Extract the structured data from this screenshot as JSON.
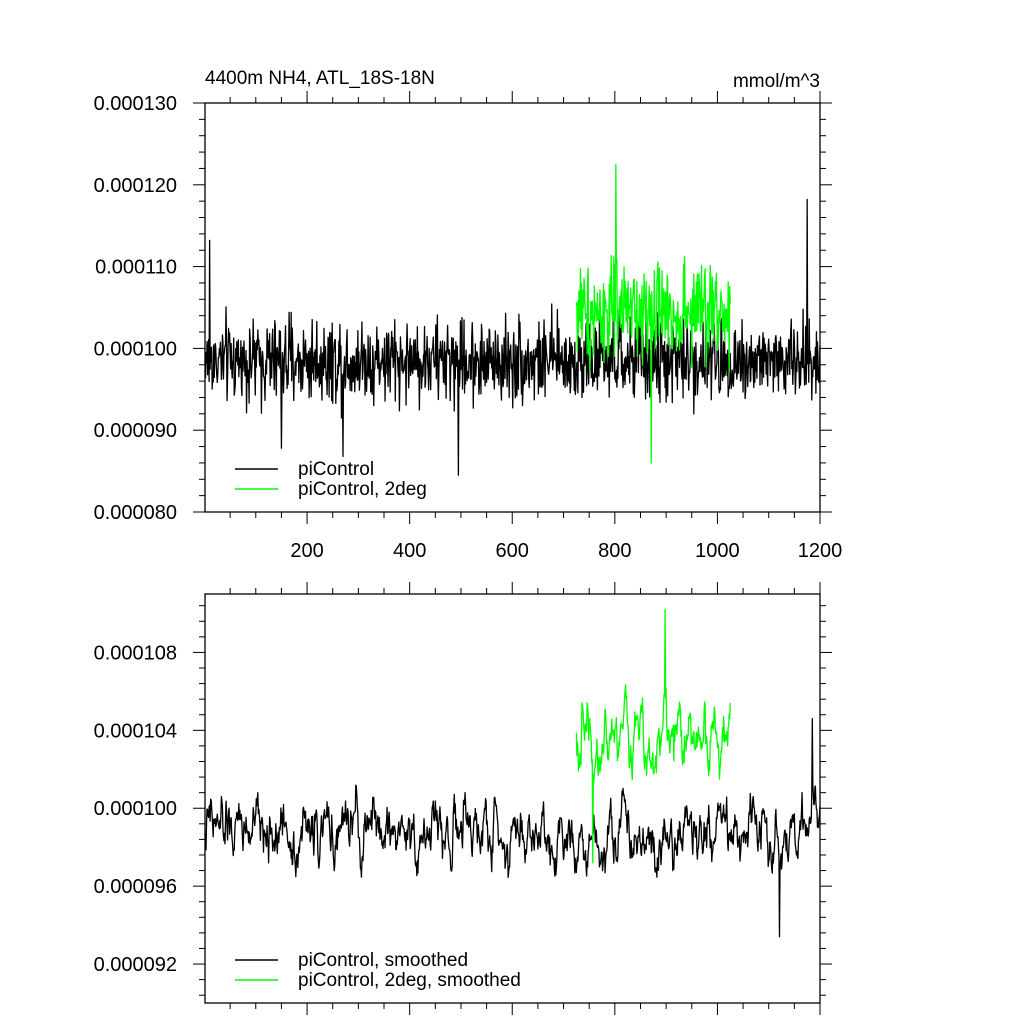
{
  "colors": {
    "piControl": "#000000",
    "piControl_2deg": "#00ff00",
    "axes": "#000000",
    "background": "#ffffff"
  },
  "chart_data": [
    {
      "type": "line",
      "title": "4400m NH4, ATL_18S-18N",
      "units": "mmol/m^3",
      "xlim": [
        1,
        1200
      ],
      "ylim": [
        8e-05,
        0.00013
      ],
      "x_ticks": [
        200,
        400,
        600,
        800,
        1000,
        1200
      ],
      "x_tick_labels": [
        "200",
        "400",
        "600",
        "800",
        "1000",
        "1200"
      ],
      "y_ticks": [
        8e-05,
        9e-05,
        0.0001,
        0.00011,
        0.00012,
        0.00013
      ],
      "y_tick_labels": [
        "0.000080",
        "0.000090",
        "0.000100",
        "0.000110",
        "0.000120",
        "0.000130"
      ],
      "legend": {
        "position": "bottom-left",
        "entries": [
          {
            "label": "piControl",
            "color": "#000000"
          },
          {
            "label": "piControl, 2deg",
            "color": "#00ff00"
          }
        ]
      },
      "series": [
        {
          "name": "piControl",
          "color": "#000000",
          "x_range": [
            1,
            1200
          ],
          "mean": 9.85e-05,
          "noise_amplitude": 4.5e-06,
          "min": 8.45e-05,
          "max": 0.000118,
          "description_points": [
            [
              10,
              0.0001132
            ],
            [
              150,
              8.78e-05
            ],
            [
              270,
              8.68e-05
            ],
            [
              495,
              8.45e-05
            ],
            [
              1175,
              0.0001182
            ]
          ]
        },
        {
          "name": "piControl, 2deg",
          "color": "#00ff00",
          "x_range": [
            725,
            1025
          ],
          "mean": 0.0001045,
          "noise_amplitude": 5.5e-06,
          "min": 8.6e-05,
          "max": 0.0001225
        }
      ]
    },
    {
      "type": "line",
      "title": "",
      "xlim": [
        1,
        1200
      ],
      "ylim": [
        9e-05,
        0.000111
      ],
      "x_ticks": [
        200,
        400,
        600,
        800,
        1000,
        1200
      ],
      "x_tick_labels": [],
      "y_ticks": [
        9.2e-05,
        9.6e-05,
        0.0001,
        0.000104,
        0.000108
      ],
      "y_tick_labels": [
        "0.000092",
        "0.000096",
        "0.000100",
        "0.000104",
        "0.000108"
      ],
      "legend": {
        "position": "bottom-left",
        "entries": [
          {
            "label": "piControl, smoothed",
            "color": "#000000"
          },
          {
            "label": "piControl, 2deg, smoothed",
            "color": "#00ff00"
          }
        ]
      },
      "series": [
        {
          "name": "piControl, smoothed",
          "color": "#000000",
          "x_range": [
            1,
            1200
          ],
          "mean": 9.88e-05,
          "noise_amplitude": 1.8e-06,
          "min": 9.34e-05,
          "max": 0.0001046
        },
        {
          "name": "piControl, 2deg, smoothed",
          "color": "#00ff00",
          "x_range": [
            725,
            1025
          ],
          "mean": 0.0001038,
          "noise_amplitude": 2.2e-06,
          "min": 9.72e-05,
          "max": 0.0001102
        }
      ]
    }
  ]
}
